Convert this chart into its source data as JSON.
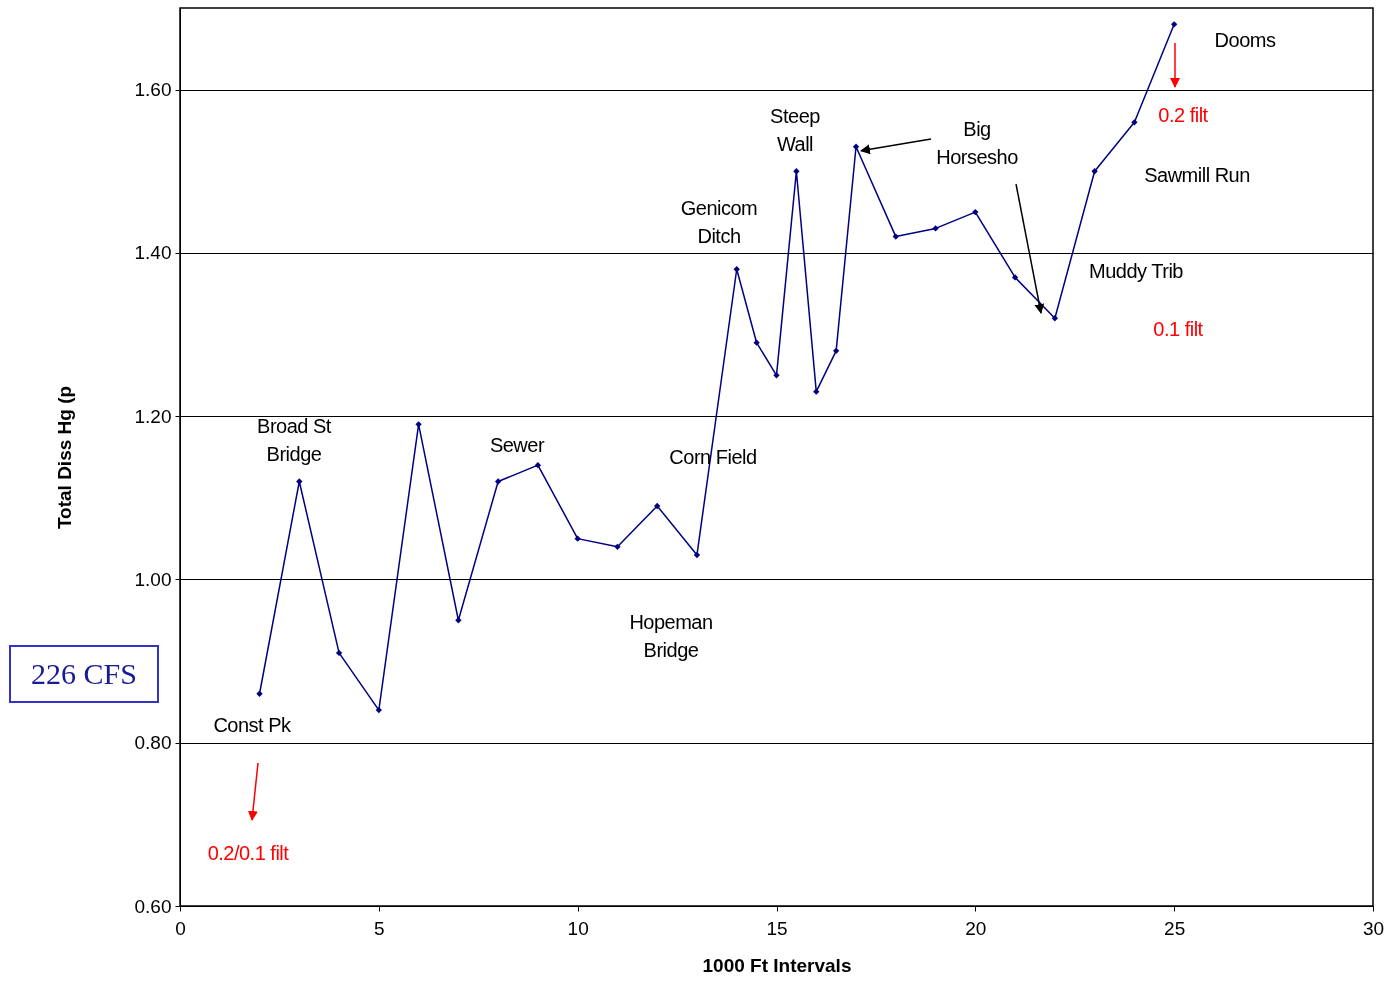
{
  "chart_data": {
    "type": "line",
    "xlabel": "1000 Ft Intervals",
    "ylabel": "Total Diss Hg (p",
    "x": [
      2,
      3,
      4,
      5,
      6,
      7,
      8,
      9,
      10,
      11,
      12,
      13,
      14,
      14.5,
      15,
      15.5,
      16,
      16.5,
      17,
      18,
      19,
      20,
      21,
      22,
      23,
      24,
      25
    ],
    "series": [
      {
        "color": "#000080",
        "values": [
          0.86,
          1.12,
          0.91,
          0.84,
          1.19,
          0.95,
          1.12,
          1.14,
          1.05,
          1.04,
          1.09,
          1.03,
          1.38,
          1.29,
          1.25,
          1.5,
          1.23,
          1.28,
          1.53,
          1.42,
          1.43,
          1.45,
          1.37,
          1.32,
          1.5,
          1.56,
          1.68
        ]
      }
    ],
    "xlim": [
      0,
      30
    ],
    "xticks": [
      0,
      5,
      10,
      15,
      20,
      25,
      30
    ],
    "ylim": [
      0.6,
      1.7
    ],
    "yticks": [
      {
        "value": 0.6,
        "label": "0.60"
      },
      {
        "value": 0.8,
        "label": "0.80"
      },
      {
        "value": 1.0,
        "label": "1.00"
      },
      {
        "value": 1.2,
        "label": "1.20"
      },
      {
        "value": 1.4,
        "label": "1.40"
      },
      {
        "value": 1.6,
        "label": "1.60"
      }
    ],
    "grid": "y",
    "marker": "diamond",
    "line_style": "solid",
    "annotations": [
      "Broad St\nBridge",
      "Sewer",
      "Corn Field",
      "Genicom\nDitch",
      "Steep\nWall",
      {
        "text": "Big\nHorsesho",
        "x": 17,
        "y": 1.53
      },
      "Dooms",
      "Sawmill Run",
      "Muddy Trib",
      "Hopeman\nBridge",
      "Const Pk",
      "0.2 filt",
      "0.1 filt",
      "0.2/0.1 filt",
      "226 CFS"
    ]
  }
}
